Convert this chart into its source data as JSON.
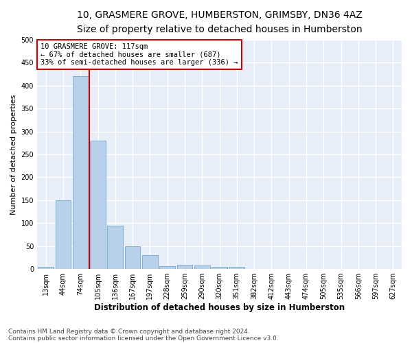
{
  "title_line1": "10, GRASMERE GROVE, HUMBERSTON, GRIMSBY, DN36 4AZ",
  "title_line2": "Size of property relative to detached houses in Humberston",
  "xlabel": "Distribution of detached houses by size in Humberston",
  "ylabel": "Number of detached properties",
  "footnote1": "Contains HM Land Registry data © Crown copyright and database right 2024.",
  "footnote2": "Contains public sector information licensed under the Open Government Licence v3.0.",
  "bin_labels": [
    "13sqm",
    "44sqm",
    "74sqm",
    "105sqm",
    "136sqm",
    "167sqm",
    "197sqm",
    "228sqm",
    "259sqm",
    "290sqm",
    "320sqm",
    "351sqm",
    "382sqm",
    "412sqm",
    "443sqm",
    "474sqm",
    "505sqm",
    "535sqm",
    "566sqm",
    "597sqm",
    "627sqm"
  ],
  "bar_values": [
    5,
    150,
    420,
    280,
    95,
    50,
    30,
    7,
    10,
    8,
    5,
    5,
    0,
    0,
    0,
    0,
    0,
    0,
    0,
    0,
    0
  ],
  "bar_color": "#b8d0ea",
  "bar_edge_color": "#6aaad4",
  "vline_color": "#cc0000",
  "annotation_text": "10 GRASMERE GROVE: 117sqm\n← 67% of detached houses are smaller (687)\n33% of semi-detached houses are larger (336) →",
  "annotation_box_color": "#cc0000",
  "ylim": [
    0,
    500
  ],
  "yticks": [
    0,
    50,
    100,
    150,
    200,
    250,
    300,
    350,
    400,
    450,
    500
  ],
  "background_color": "#e8eef8",
  "grid_color": "#ffffff",
  "title1_fontsize": 10,
  "title2_fontsize": 9,
  "xlabel_fontsize": 8.5,
  "ylabel_fontsize": 8,
  "tick_fontsize": 7,
  "annot_fontsize": 7.5,
  "footnote_fontsize": 6.5
}
